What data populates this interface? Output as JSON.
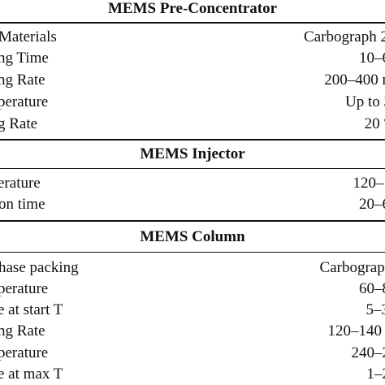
{
  "sections": [
    {
      "title": "MEMS Pre-Concentrator",
      "rows": [
        {
          "param": "Materials",
          "value": "Carbograph 2"
        },
        {
          "param": "ng Time",
          "value": "10–6"
        },
        {
          "param": "ng Rate",
          "value": "200–400 n"
        },
        {
          "param": "perature",
          "value": "Up to 3"
        },
        {
          "param": "g Rate",
          "value": "20 °"
        }
      ]
    },
    {
      "title": "MEMS Injector",
      "rows": [
        {
          "param": "erature",
          "value": "120–1"
        },
        {
          "param": "on time",
          "value": "20–6"
        }
      ]
    },
    {
      "title": "MEMS Column",
      "rows": [
        {
          "param": "hase packing",
          "value": "Carbograpl"
        },
        {
          "param": "perature",
          "value": "60–8"
        },
        {
          "param": "e at start T",
          "value": "5–3"
        },
        {
          "param": "ng Rate",
          "value": "120–140"
        },
        {
          "param": "perature",
          "value": "240–2"
        },
        {
          "param": "e at max T",
          "value": "1–2"
        }
      ]
    }
  ]
}
